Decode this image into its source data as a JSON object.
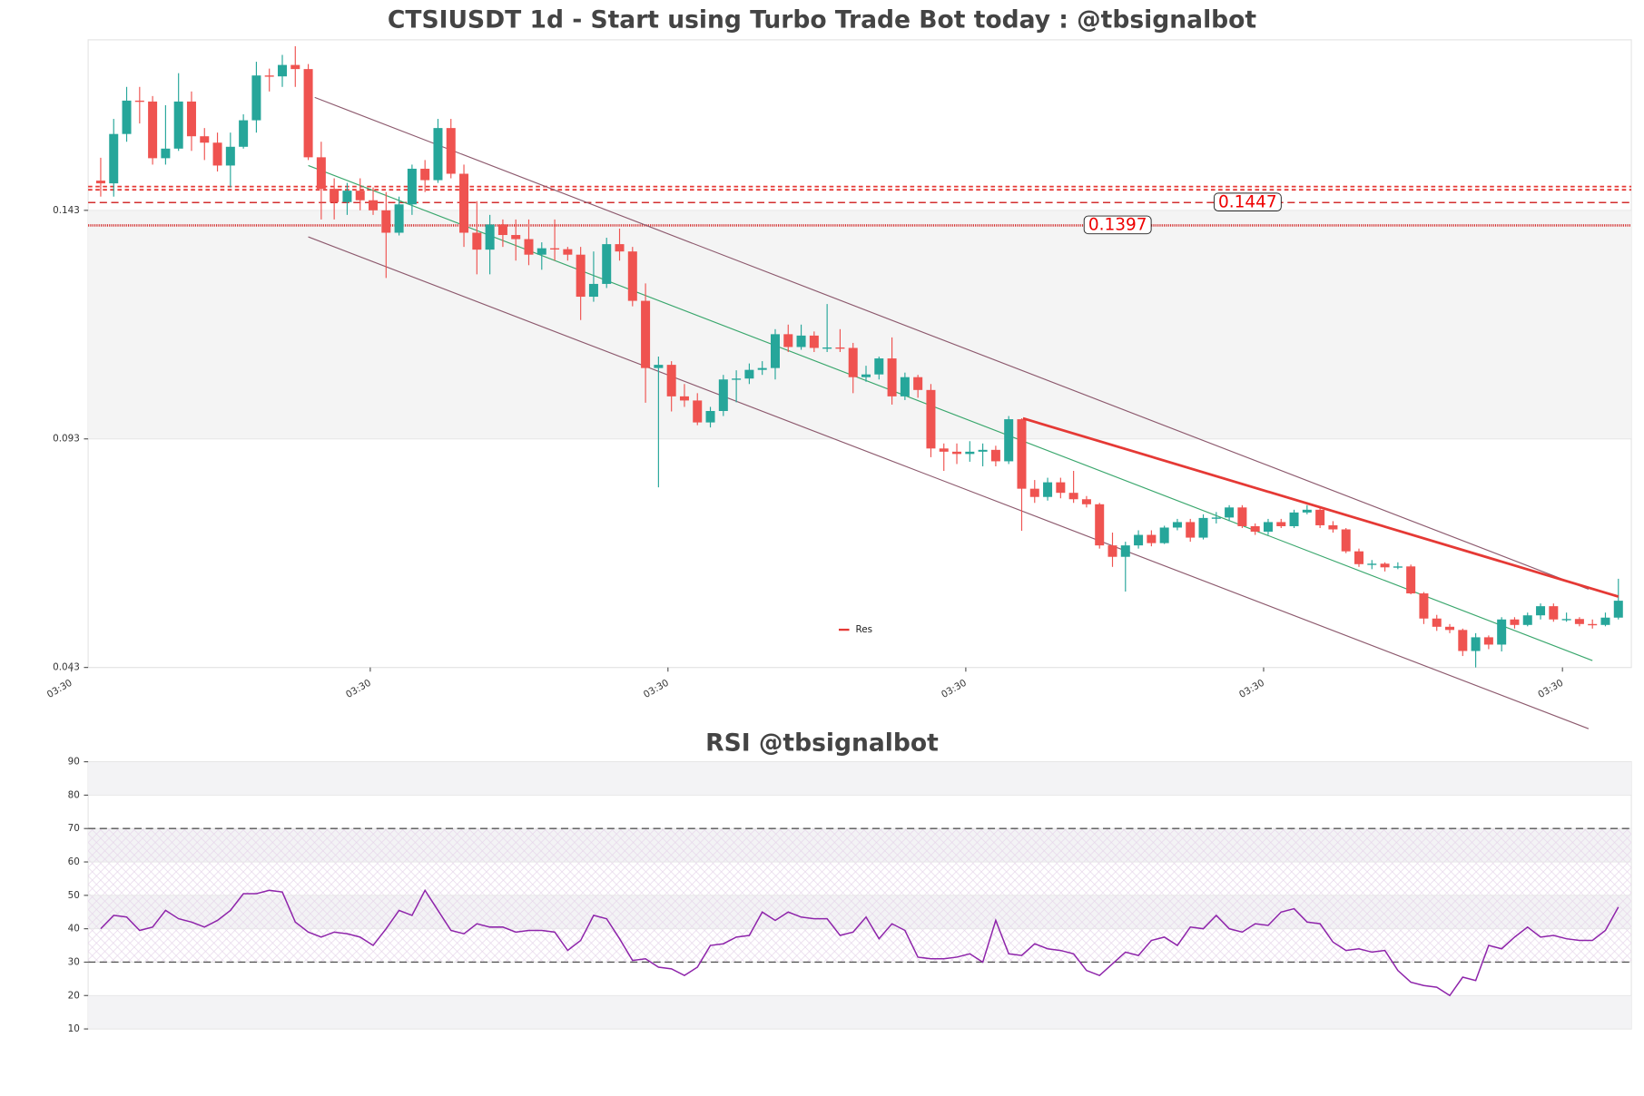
{
  "chart_data": [
    {
      "type": "candlestick",
      "title": "CTSIUSDT 1d - Start using Turbo Trade Bot today : @tbsignalbot",
      "up_color": "#26a69a",
      "down_color": "#ef5350",
      "xlim": [
        -0.97,
        118
      ],
      "xticks": [
        {
          "value": -2.26,
          "label": "03:30"
        },
        {
          "value": 20.78,
          "label": "03:30"
        },
        {
          "value": 43.73,
          "label": "03:30"
        },
        {
          "value": 66.69,
          "label": "03:30"
        },
        {
          "value": 89.65,
          "label": "03:30"
        },
        {
          "value": 112.69,
          "label": "03:30"
        }
      ],
      "ylim": [
        0.043,
        0.1803
      ],
      "yticks": [
        0.043,
        0.093,
        0.143
      ],
      "band": [
        0.093,
        0.143
      ],
      "levels": [
        {
          "value": 0.1447,
          "label": "0.1447"
        },
        {
          "value": 0.1397,
          "label": "0.1397"
        }
      ],
      "marker_lines": [
        0.1482,
        0.1475
      ],
      "open": [
        0.1495,
        0.1489,
        0.1597,
        0.167,
        0.1668,
        0.1544,
        0.1565,
        0.1668,
        0.1592,
        0.1578,
        0.1528,
        0.1569,
        0.1627,
        0.1725,
        0.1723,
        0.1748,
        0.1739,
        0.1546,
        0.1477,
        0.1448,
        0.1473,
        0.1452,
        0.143,
        0.1381,
        0.1443,
        0.1521,
        0.1496,
        0.161,
        0.151,
        0.1381,
        0.1344,
        0.1399,
        0.1376,
        0.1367,
        0.1333,
        0.1347,
        0.1345,
        0.1333,
        0.1241,
        0.1269,
        0.1356,
        0.134,
        0.1232,
        0.1085,
        0.1092,
        0.1023,
        0.1014,
        0.0966,
        0.0991,
        0.106,
        0.1062,
        0.1081,
        0.1085,
        0.1159,
        0.1131,
        0.1156,
        0.1129,
        0.113,
        0.1129,
        0.1065,
        0.1071,
        0.1106,
        0.1023,
        0.1065,
        0.1037,
        0.0909,
        0.0902,
        0.0897,
        0.0902,
        0.0906,
        0.0881,
        0.0973,
        0.0821,
        0.0803,
        0.0835,
        0.0812,
        0.0798,
        0.0787,
        0.0697,
        0.0672,
        0.0697,
        0.072,
        0.0702,
        0.0736,
        0.0748,
        0.0714,
        0.0757,
        0.0758,
        0.078,
        0.0739,
        0.0727,
        0.0748,
        0.0739,
        0.0769,
        0.0775,
        0.0741,
        0.0732,
        0.0684,
        0.0656,
        0.0657,
        0.0649,
        0.0651,
        0.0592,
        0.0537,
        0.0519,
        0.0512,
        0.0466,
        0.0496,
        0.048,
        0.0535,
        0.0523,
        0.0544,
        0.0564,
        0.0535,
        0.0536,
        0.0525,
        0.0523,
        0.0539
      ],
      "high": [
        0.1545,
        0.163,
        0.17,
        0.17,
        0.168,
        0.166,
        0.173,
        0.169,
        0.161,
        0.16,
        0.16,
        0.164,
        0.1755,
        0.174,
        0.177,
        0.1789,
        0.175,
        0.158,
        0.15,
        0.149,
        0.15,
        0.148,
        0.147,
        0.146,
        0.153,
        0.154,
        0.163,
        0.163,
        0.153,
        0.145,
        0.142,
        0.141,
        0.141,
        0.141,
        0.136,
        0.141,
        0.135,
        0.135,
        0.134,
        0.137,
        0.139,
        0.135,
        0.127,
        0.111,
        0.11,
        0.105,
        0.103,
        0.1,
        0.107,
        0.108,
        0.1095,
        0.11,
        0.117,
        0.118,
        0.118,
        0.1165,
        0.1225,
        0.117,
        0.114,
        0.109,
        0.111,
        0.1152,
        0.1075,
        0.107,
        0.105,
        0.092,
        0.092,
        0.0925,
        0.092,
        0.0915,
        0.098,
        0.0975,
        0.084,
        0.0845,
        0.0845,
        0.086,
        0.0805,
        0.079,
        0.0725,
        0.0705,
        0.073,
        0.073,
        0.074,
        0.0755,
        0.0755,
        0.0765,
        0.077,
        0.0785,
        0.0785,
        0.0745,
        0.0755,
        0.0755,
        0.0775,
        0.0785,
        0.078,
        0.075,
        0.0735,
        0.069,
        0.0665,
        0.066,
        0.066,
        0.0655,
        0.0595,
        0.0545,
        0.0525,
        0.0515,
        0.0505,
        0.05,
        0.054,
        0.054,
        0.055,
        0.057,
        0.057,
        0.055,
        0.054,
        0.0535,
        0.055,
        0.0624
      ],
      "low": [
        0.146,
        0.146,
        0.158,
        0.162,
        0.153,
        0.153,
        0.156,
        0.156,
        0.154,
        0.1515,
        0.148,
        0.1565,
        0.16,
        0.169,
        0.17,
        0.17,
        0.154,
        0.141,
        0.141,
        0.142,
        0.143,
        0.142,
        0.1282,
        0.1375,
        0.142,
        0.147,
        0.149,
        0.15,
        0.135,
        0.129,
        0.129,
        0.135,
        0.132,
        0.131,
        0.13,
        0.132,
        0.132,
        0.119,
        0.123,
        0.126,
        0.132,
        0.122,
        0.1009,
        0.0824,
        0.099,
        0.1,
        0.096,
        0.0955,
        0.098,
        0.101,
        0.105,
        0.107,
        0.106,
        0.112,
        0.1125,
        0.112,
        0.112,
        0.112,
        0.103,
        0.1055,
        0.106,
        0.1005,
        0.1015,
        0.102,
        0.089,
        0.086,
        0.0875,
        0.088,
        0.087,
        0.087,
        0.0875,
        0.0729,
        0.079,
        0.0795,
        0.08,
        0.079,
        0.078,
        0.069,
        0.065,
        0.0596,
        0.069,
        0.0695,
        0.07,
        0.073,
        0.0705,
        0.071,
        0.0745,
        0.075,
        0.0735,
        0.072,
        0.072,
        0.0735,
        0.0735,
        0.0765,
        0.0735,
        0.0725,
        0.068,
        0.065,
        0.0645,
        0.064,
        0.0645,
        0.059,
        0.0525,
        0.051,
        0.0505,
        0.0455,
        0.043,
        0.047,
        0.0465,
        0.0515,
        0.052,
        0.0535,
        0.053,
        0.053,
        0.052,
        0.0515,
        0.052,
        0.0535
      ],
      "close": [
        0.1489,
        0.1597,
        0.167,
        0.1668,
        0.1544,
        0.1565,
        0.1668,
        0.1592,
        0.1578,
        0.1528,
        0.1569,
        0.1627,
        0.1725,
        0.1723,
        0.1748,
        0.1739,
        0.1546,
        0.1477,
        0.1448,
        0.1473,
        0.1452,
        0.143,
        0.1381,
        0.1443,
        0.1521,
        0.1496,
        0.161,
        0.151,
        0.1381,
        0.1344,
        0.1399,
        0.1376,
        0.1367,
        0.1333,
        0.1347,
        0.1345,
        0.1333,
        0.1241,
        0.1269,
        0.1356,
        0.134,
        0.1232,
        0.1085,
        0.1092,
        0.1023,
        0.1014,
        0.0966,
        0.0991,
        0.106,
        0.1062,
        0.1081,
        0.1085,
        0.1159,
        0.1131,
        0.1156,
        0.1129,
        0.113,
        0.1129,
        0.1065,
        0.1071,
        0.1106,
        0.1023,
        0.1065,
        0.1037,
        0.0909,
        0.0902,
        0.0897,
        0.0902,
        0.0906,
        0.0881,
        0.0973,
        0.0821,
        0.0803,
        0.0835,
        0.0812,
        0.0798,
        0.0787,
        0.0697,
        0.0672,
        0.0697,
        0.072,
        0.0702,
        0.0736,
        0.0748,
        0.0714,
        0.0757,
        0.0758,
        0.078,
        0.0739,
        0.0727,
        0.0748,
        0.0739,
        0.0769,
        0.0775,
        0.0741,
        0.0732,
        0.0684,
        0.0656,
        0.0657,
        0.0649,
        0.0651,
        0.0592,
        0.0537,
        0.0519,
        0.0512,
        0.0466,
        0.0496,
        0.048,
        0.0535,
        0.0523,
        0.0544,
        0.0564,
        0.0535,
        0.0536,
        0.0525,
        0.0523,
        0.0539,
        0.0576
      ],
      "channel": [
        {
          "color": "#8d5a6e",
          "x": [
            16.5,
            114.7
          ],
          "y": [
            0.1677,
            0.0601
          ]
        },
        {
          "color": "#3aa76d",
          "x": [
            16.0,
            115.0
          ],
          "y": [
            0.1528,
            0.0445
          ]
        },
        {
          "color": "#8d5a6e",
          "x": [
            16.0,
            114.7
          ],
          "y": [
            0.1372,
            0.0296
          ]
        }
      ],
      "series": [
        {
          "name": "Res",
          "color": "#e53935",
          "x": [
            71.1,
            117
          ],
          "y": [
            0.0975,
            0.0585
          ]
        }
      ],
      "legend": "lower center"
    },
    {
      "type": "line",
      "title": "RSI @tbsignalbot",
      "color": "#8e24aa",
      "xlim": [
        -0.97,
        118
      ],
      "ylim": [
        10,
        90
      ],
      "yticks": [
        10,
        20,
        30,
        40,
        50,
        60,
        70,
        80,
        90
      ],
      "bands": [
        [
          80,
          90
        ],
        [
          60,
          70
        ],
        [
          40,
          50
        ],
        [
          10,
          20
        ]
      ],
      "hatch": [
        30,
        70
      ],
      "level_lines": [
        30,
        70
      ],
      "values": [
        40,
        44,
        43.5,
        39.5,
        40.5,
        45.5,
        43,
        42,
        40.5,
        42.5,
        45.5,
        50.5,
        50.5,
        51.5,
        51,
        42,
        39,
        37.5,
        39,
        38.5,
        37.5,
        35,
        40,
        45.5,
        44,
        51.5,
        45.5,
        39.5,
        38.5,
        41.5,
        40.5,
        40.5,
        39,
        39.5,
        39.5,
        39,
        33.5,
        36.5,
        44,
        43,
        37,
        30.5,
        31,
        28.5,
        28,
        26,
        28.5,
        35,
        35.5,
        37.5,
        38,
        45,
        42.5,
        45,
        43.5,
        43,
        43,
        38,
        39,
        43.5,
        37,
        41.5,
        39.5,
        31.5,
        31,
        31,
        31.5,
        32.5,
        30,
        42.5,
        32.5,
        32,
        35.5,
        34,
        33.5,
        32.5,
        27.5,
        26,
        29.5,
        33,
        32,
        36.5,
        37.5,
        35,
        40.5,
        40,
        44,
        40,
        39,
        41.5,
        41,
        45,
        46,
        42,
        41.5,
        36,
        33.5,
        34,
        33,
        33.5,
        27.5,
        24,
        23,
        22.5,
        20,
        25.5,
        24.5,
        35,
        34,
        37.5,
        40.5,
        37.5,
        38,
        37,
        36.5,
        36.5,
        39.5,
        46.5
      ]
    }
  ]
}
